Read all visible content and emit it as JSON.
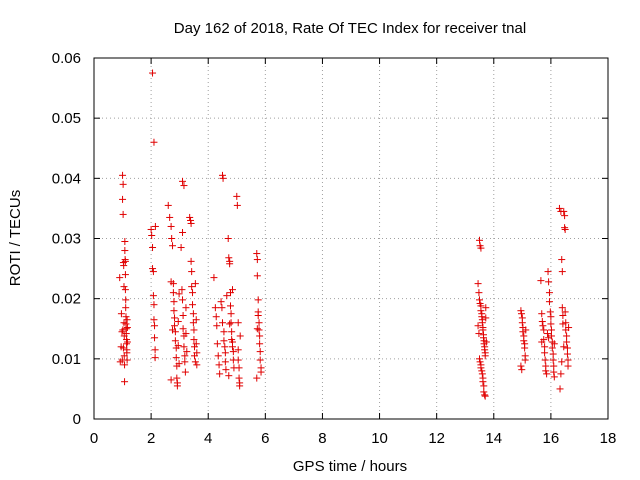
{
  "chart_data": {
    "type": "scatter",
    "title": "Day 162 of 2018, Rate Of TEC Index for receiver tnal",
    "xlabel": "GPS time / hours",
    "ylabel": "ROTI / TECUs",
    "xlim": [
      0,
      18
    ],
    "ylim": [
      0,
      0.06
    ],
    "xticks": [
      0,
      2,
      4,
      6,
      8,
      10,
      12,
      14,
      16,
      18
    ],
    "yticks": [
      0,
      0.01,
      0.02,
      0.03,
      0.04,
      0.05,
      0.06
    ],
    "xtick_labels": [
      "0",
      "2",
      "4",
      "6",
      "8",
      "10",
      "12",
      "14",
      "16",
      "18"
    ],
    "ytick_labels": [
      "0",
      "0.01",
      "0.02",
      "0.03",
      "0.04",
      "0.05",
      "0.06"
    ],
    "grid": true,
    "marker": "+",
    "marker_color": "#e00000",
    "series": [
      {
        "name": "ROTI",
        "points": [
          [
            0.9,
            0.0235
          ],
          [
            0.92,
            0.0095
          ],
          [
            0.95,
            0.012
          ],
          [
            0.98,
            0.0145
          ],
          [
            1.0,
            0.0405
          ],
          [
            1.0,
            0.0365
          ],
          [
            1.02,
            0.039
          ],
          [
            1.02,
            0.034
          ],
          [
            1.03,
            0.026
          ],
          [
            1.04,
            0.0255
          ],
          [
            1.05,
            0.022
          ],
          [
            1.05,
            0.016
          ],
          [
            1.06,
            0.0138
          ],
          [
            1.06,
            0.0105
          ],
          [
            1.07,
            0.009
          ],
          [
            1.07,
            0.0062
          ],
          [
            1.08,
            0.0295
          ],
          [
            1.08,
            0.028
          ],
          [
            1.09,
            0.0265
          ],
          [
            1.1,
            0.0262
          ],
          [
            1.1,
            0.024
          ],
          [
            1.1,
            0.0215
          ],
          [
            1.11,
            0.0198
          ],
          [
            1.11,
            0.0185
          ],
          [
            1.12,
            0.017
          ],
          [
            1.12,
            0.0158
          ],
          [
            1.13,
            0.015
          ],
          [
            1.13,
            0.0142
          ],
          [
            1.14,
            0.0132
          ],
          [
            1.14,
            0.0125
          ],
          [
            1.15,
            0.0115
          ],
          [
            1.15,
            0.011
          ],
          [
            1.16,
            0.0098
          ],
          [
            1.16,
            0.0165
          ],
          [
            1.17,
            0.0152
          ],
          [
            1.17,
            0.0128
          ],
          [
            0.96,
            0.0175
          ],
          [
            0.99,
            0.0098
          ],
          [
            1.01,
            0.0148
          ],
          [
            1.03,
            0.0118
          ],
          [
            2.05,
            0.0575
          ],
          [
            2.1,
            0.046
          ],
          [
            2.0,
            0.0315
          ],
          [
            2.02,
            0.0305
          ],
          [
            2.05,
            0.0285
          ],
          [
            2.05,
            0.025
          ],
          [
            2.08,
            0.0245
          ],
          [
            2.08,
            0.0205
          ],
          [
            2.1,
            0.019
          ],
          [
            2.1,
            0.0165
          ],
          [
            2.12,
            0.0155
          ],
          [
            2.12,
            0.0135
          ],
          [
            2.14,
            0.0115
          ],
          [
            2.14,
            0.0102
          ],
          [
            2.15,
            0.032
          ],
          [
            2.6,
            0.0355
          ],
          [
            2.65,
            0.0335
          ],
          [
            2.7,
            0.032
          ],
          [
            2.72,
            0.03
          ],
          [
            2.75,
            0.0288
          ],
          [
            2.78,
            0.0225
          ],
          [
            2.78,
            0.021
          ],
          [
            2.8,
            0.0195
          ],
          [
            2.8,
            0.018
          ],
          [
            2.82,
            0.0168
          ],
          [
            2.82,
            0.0155
          ],
          [
            2.85,
            0.0145
          ],
          [
            2.85,
            0.013
          ],
          [
            2.88,
            0.0118
          ],
          [
            2.88,
            0.0102
          ],
          [
            2.9,
            0.0088
          ],
          [
            2.9,
            0.0068
          ],
          [
            2.92,
            0.006
          ],
          [
            2.92,
            0.0055
          ],
          [
            2.7,
            0.0228
          ],
          [
            2.75,
            0.0148
          ],
          [
            2.95,
            0.0162
          ],
          [
            2.95,
            0.0122
          ],
          [
            2.98,
            0.0208
          ],
          [
            2.98,
            0.0092
          ],
          [
            2.7,
            0.0065
          ],
          [
            3.1,
            0.0395
          ],
          [
            3.15,
            0.0388
          ],
          [
            3.1,
            0.031
          ],
          [
            3.05,
            0.0285
          ],
          [
            3.08,
            0.0215
          ],
          [
            3.1,
            0.0198
          ],
          [
            3.12,
            0.0172
          ],
          [
            3.12,
            0.015
          ],
          [
            3.15,
            0.0138
          ],
          [
            3.15,
            0.012
          ],
          [
            3.18,
            0.0105
          ],
          [
            3.18,
            0.0095
          ],
          [
            3.2,
            0.0078
          ],
          [
            3.22,
            0.0185
          ],
          [
            3.22,
            0.0142
          ],
          [
            3.25,
            0.0112
          ],
          [
            3.35,
            0.0335
          ],
          [
            3.38,
            0.033
          ],
          [
            3.4,
            0.0325
          ],
          [
            3.4,
            0.0262
          ],
          [
            3.42,
            0.0245
          ],
          [
            3.42,
            0.022
          ],
          [
            3.45,
            0.021
          ],
          [
            3.45,
            0.019
          ],
          [
            3.48,
            0.0175
          ],
          [
            3.48,
            0.016
          ],
          [
            3.5,
            0.0148
          ],
          [
            3.5,
            0.0132
          ],
          [
            3.52,
            0.012
          ],
          [
            3.52,
            0.0105
          ],
          [
            3.55,
            0.0095
          ],
          [
            3.55,
            0.0225
          ],
          [
            3.58,
            0.0165
          ],
          [
            3.58,
            0.0125
          ],
          [
            3.6,
            0.011
          ],
          [
            3.6,
            0.009
          ],
          [
            4.2,
            0.0235
          ],
          [
            4.25,
            0.0185
          ],
          [
            4.28,
            0.017
          ],
          [
            4.3,
            0.0155
          ],
          [
            4.32,
            0.0125
          ],
          [
            4.35,
            0.0105
          ],
          [
            4.38,
            0.009
          ],
          [
            4.4,
            0.0075
          ],
          [
            4.45,
            0.0195
          ],
          [
            4.48,
            0.0185
          ],
          [
            4.5,
            0.016
          ],
          [
            4.5,
            0.0405
          ],
          [
            4.52,
            0.04
          ],
          [
            4.55,
            0.0145
          ],
          [
            4.55,
            0.013
          ],
          [
            4.58,
            0.012
          ],
          [
            4.6,
            0.011
          ],
          [
            4.6,
            0.0095
          ],
          [
            4.62,
            0.0082
          ],
          [
            4.65,
            0.0205
          ],
          [
            4.7,
            0.03
          ],
          [
            4.72,
            0.0268
          ],
          [
            4.75,
            0.0262
          ],
          [
            4.75,
            0.0258
          ],
          [
            4.78,
            0.021
          ],
          [
            4.78,
            0.0188
          ],
          [
            4.8,
            0.0175
          ],
          [
            4.8,
            0.016
          ],
          [
            4.82,
            0.0145
          ],
          [
            4.82,
            0.0132
          ],
          [
            4.85,
            0.0128
          ],
          [
            4.85,
            0.012
          ],
          [
            4.88,
            0.0112
          ],
          [
            4.88,
            0.0098
          ],
          [
            4.9,
            0.0085
          ],
          [
            4.72,
            0.0072
          ],
          [
            4.75,
            0.0158
          ],
          [
            4.85,
            0.0215
          ],
          [
            5.0,
            0.037
          ],
          [
            5.02,
            0.0355
          ],
          [
            5.05,
            0.016
          ],
          [
            5.05,
            0.0115
          ],
          [
            5.05,
            0.0098
          ],
          [
            5.08,
            0.0085
          ],
          [
            5.08,
            0.0068
          ],
          [
            5.1,
            0.006
          ],
          [
            5.1,
            0.0055
          ],
          [
            5.12,
            0.0138
          ],
          [
            5.7,
            0.0275
          ],
          [
            5.72,
            0.0265
          ],
          [
            5.72,
            0.0238
          ],
          [
            5.75,
            0.0198
          ],
          [
            5.75,
            0.0178
          ],
          [
            5.75,
            0.0172
          ],
          [
            5.78,
            0.016
          ],
          [
            5.78,
            0.0148
          ],
          [
            5.8,
            0.0138
          ],
          [
            5.8,
            0.0125
          ],
          [
            5.82,
            0.0112
          ],
          [
            5.82,
            0.0098
          ],
          [
            5.85,
            0.0085
          ],
          [
            5.85,
            0.0078
          ],
          [
            5.7,
            0.0068
          ],
          [
            5.72,
            0.015
          ],
          [
            13.5,
            0.0297
          ],
          [
            13.52,
            0.0288
          ],
          [
            13.55,
            0.0284
          ],
          [
            13.45,
            0.0225
          ],
          [
            13.48,
            0.021
          ],
          [
            13.5,
            0.0198
          ],
          [
            13.52,
            0.0192
          ],
          [
            13.55,
            0.0188
          ],
          [
            13.55,
            0.018
          ],
          [
            13.58,
            0.0175
          ],
          [
            13.58,
            0.017
          ],
          [
            13.6,
            0.0165
          ],
          [
            13.6,
            0.016
          ],
          [
            13.62,
            0.0152
          ],
          [
            13.62,
            0.0148
          ],
          [
            13.64,
            0.014
          ],
          [
            13.64,
            0.0135
          ],
          [
            13.66,
            0.013
          ],
          [
            13.66,
            0.0125
          ],
          [
            13.68,
            0.012
          ],
          [
            13.68,
            0.0115
          ],
          [
            13.7,
            0.011
          ],
          [
            13.7,
            0.0105
          ],
          [
            13.5,
            0.01
          ],
          [
            13.52,
            0.0095
          ],
          [
            13.55,
            0.009
          ],
          [
            13.55,
            0.0085
          ],
          [
            13.58,
            0.008
          ],
          [
            13.6,
            0.0075
          ],
          [
            13.62,
            0.0068
          ],
          [
            13.62,
            0.0062
          ],
          [
            13.65,
            0.0055
          ],
          [
            13.65,
            0.0045
          ],
          [
            13.68,
            0.004
          ],
          [
            13.7,
            0.0038
          ],
          [
            13.45,
            0.0155
          ],
          [
            13.48,
            0.0142
          ],
          [
            13.72,
            0.0185
          ],
          [
            13.72,
            0.0168
          ],
          [
            13.74,
            0.0128
          ],
          [
            14.95,
            0.018
          ],
          [
            14.97,
            0.0175
          ],
          [
            15.0,
            0.0168
          ],
          [
            15.0,
            0.016
          ],
          [
            15.02,
            0.0152
          ],
          [
            15.02,
            0.0145
          ],
          [
            15.05,
            0.0138
          ],
          [
            15.05,
            0.013
          ],
          [
            15.08,
            0.0125
          ],
          [
            15.08,
            0.0118
          ],
          [
            15.1,
            0.0105
          ],
          [
            15.1,
            0.0098
          ],
          [
            14.95,
            0.0088
          ],
          [
            14.98,
            0.0082
          ],
          [
            15.12,
            0.0148
          ],
          [
            15.65,
            0.023
          ],
          [
            15.68,
            0.0175
          ],
          [
            15.7,
            0.0162
          ],
          [
            15.72,
            0.0155
          ],
          [
            15.75,
            0.0148
          ],
          [
            15.75,
            0.0132
          ],
          [
            15.78,
            0.012
          ],
          [
            15.78,
            0.011
          ],
          [
            15.8,
            0.0098
          ],
          [
            15.82,
            0.0088
          ],
          [
            15.82,
            0.008
          ],
          [
            15.85,
            0.0075
          ],
          [
            15.88,
            0.0142
          ],
          [
            15.68,
            0.0128
          ],
          [
            15.9,
            0.0245
          ],
          [
            15.92,
            0.0228
          ],
          [
            15.95,
            0.021
          ],
          [
            15.95,
            0.0195
          ],
          [
            15.98,
            0.0178
          ],
          [
            16.0,
            0.017
          ],
          [
            16.0,
            0.0158
          ],
          [
            16.02,
            0.0148
          ],
          [
            16.02,
            0.0138
          ],
          [
            16.05,
            0.0128
          ],
          [
            16.05,
            0.0118
          ],
          [
            16.08,
            0.0108
          ],
          [
            16.08,
            0.0098
          ],
          [
            16.1,
            0.0088
          ],
          [
            16.1,
            0.0078
          ],
          [
            16.12,
            0.007
          ],
          [
            15.92,
            0.0135
          ],
          [
            16.12,
            0.0125
          ],
          [
            16.3,
            0.035
          ],
          [
            16.35,
            0.0345
          ],
          [
            16.38,
            0.0265
          ],
          [
            16.4,
            0.0245
          ],
          [
            16.4,
            0.0185
          ],
          [
            16.42,
            0.0172
          ],
          [
            16.42,
            0.0158
          ],
          [
            16.45,
            0.0345
          ],
          [
            16.48,
            0.0338
          ],
          [
            16.48,
            0.0318
          ],
          [
            16.5,
            0.0315
          ],
          [
            16.5,
            0.0178
          ],
          [
            16.52,
            0.016
          ],
          [
            16.52,
            0.0148
          ],
          [
            16.55,
            0.0138
          ],
          [
            16.55,
            0.0128
          ],
          [
            16.58,
            0.0118
          ],
          [
            16.58,
            0.0108
          ],
          [
            16.6,
            0.0098
          ],
          [
            16.6,
            0.0088
          ],
          [
            16.35,
            0.0075
          ],
          [
            16.32,
            0.005
          ],
          [
            16.38,
            0.0095
          ],
          [
            16.45,
            0.012
          ],
          [
            16.62,
            0.0152
          ]
        ]
      }
    ]
  }
}
